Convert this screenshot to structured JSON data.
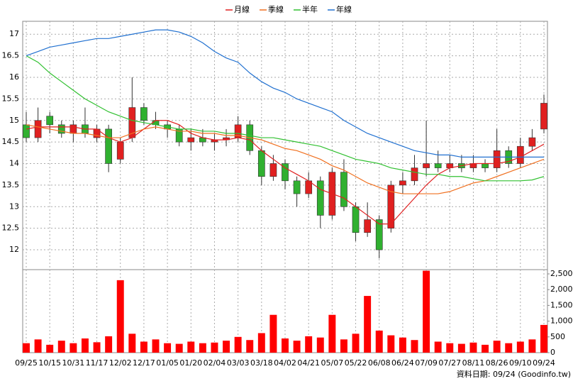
{
  "chart_data": {
    "type": "candlestick",
    "legend": [
      "月線",
      "季線",
      "半年",
      "年線"
    ],
    "source_note": "資料日期: 09/24 (Goodinfo.tw)",
    "categories": [
      "09/25",
      null,
      "10/15",
      null,
      "10/31",
      null,
      "11/17",
      null,
      "12/02",
      null,
      "12/17",
      null,
      "01/05",
      null,
      "01/20",
      null,
      "02/04",
      null,
      "03/03",
      null,
      "03/18",
      null,
      "04/02",
      null,
      "04/21",
      null,
      "05/07",
      null,
      "05/22",
      null,
      "06/08",
      null,
      "06/24",
      null,
      "07/09",
      null,
      "07/27",
      null,
      "08/11",
      null,
      "08/26",
      null,
      "09/10",
      null,
      "09/24"
    ],
    "open": [
      14.9,
      14.6,
      15.1,
      14.9,
      14.7,
      14.9,
      14.6,
      14.8,
      14.1,
      14.6,
      15.3,
      15.0,
      14.9,
      14.8,
      14.5,
      14.6,
      14.5,
      14.55,
      14.6,
      14.9,
      14.3,
      13.7,
      14.0,
      13.6,
      13.3,
      13.6,
      12.8,
      13.8,
      13.0,
      12.4,
      12.7,
      12.5,
      13.5,
      13.6,
      13.9,
      14.0,
      13.9,
      14.0,
      13.9,
      14.0,
      13.9,
      14.3,
      14.0,
      14.4,
      14.8
    ],
    "high": [
      15.2,
      15.3,
      15.2,
      15.0,
      15.0,
      15.3,
      14.9,
      14.9,
      14.6,
      16.0,
      15.4,
      15.2,
      15.0,
      14.9,
      14.8,
      14.8,
      14.7,
      14.8,
      15.1,
      15.0,
      14.4,
      14.2,
      14.1,
      13.7,
      13.8,
      13.7,
      13.9,
      14.1,
      13.1,
      13.1,
      12.8,
      13.6,
      13.8,
      14.2,
      15.0,
      14.3,
      14.2,
      14.2,
      14.2,
      14.1,
      14.8,
      14.4,
      14.6,
      14.8,
      15.6
    ],
    "low": [
      14.5,
      14.5,
      14.7,
      14.6,
      14.5,
      14.6,
      14.5,
      13.8,
      14.0,
      14.5,
      14.9,
      14.8,
      14.6,
      14.4,
      14.3,
      14.4,
      14.3,
      14.4,
      14.5,
      14.2,
      13.5,
      13.6,
      13.4,
      13.0,
      13.2,
      12.5,
      12.7,
      12.9,
      12.2,
      12.3,
      11.8,
      12.4,
      13.3,
      13.5,
      13.7,
      13.8,
      13.8,
      13.8,
      13.8,
      13.8,
      13.8,
      13.9,
      13.9,
      14.3,
      14.7
    ],
    "close": [
      14.6,
      15.0,
      14.9,
      14.7,
      14.9,
      14.7,
      14.8,
      14.0,
      14.5,
      15.3,
      15.0,
      14.9,
      14.8,
      14.5,
      14.6,
      14.5,
      14.55,
      14.6,
      14.9,
      14.3,
      13.7,
      14.0,
      13.6,
      13.3,
      13.6,
      12.8,
      13.8,
      13.0,
      12.4,
      12.7,
      12.0,
      13.5,
      13.6,
      13.9,
      14.0,
      13.9,
      14.0,
      13.9,
      14.0,
      13.9,
      14.3,
      14.0,
      14.4,
      14.6,
      15.4
    ],
    "ylim": [
      11.54,
      17.3
    ],
    "yticks": [
      12,
      12.5,
      13,
      13.5,
      14,
      14.5,
      15,
      15.5,
      16,
      16.5,
      17
    ],
    "series": [
      {
        "name": "月線",
        "color": "#e02020",
        "values": [
          14.8,
          14.85,
          14.85,
          14.85,
          14.85,
          14.8,
          14.8,
          14.6,
          14.5,
          14.6,
          14.8,
          15.0,
          15.0,
          14.9,
          14.7,
          14.6,
          14.55,
          14.55,
          14.6,
          14.55,
          14.3,
          14.1,
          13.9,
          13.75,
          13.6,
          13.4,
          13.3,
          13.2,
          13.0,
          12.8,
          12.6,
          12.6,
          12.9,
          13.2,
          13.5,
          13.75,
          13.9,
          13.95,
          14.0,
          14.0,
          14.0,
          14.05,
          14.15,
          14.3,
          14.45
        ]
      },
      {
        "name": "季線",
        "color": "#f07020",
        "values": [
          14.9,
          14.85,
          14.8,
          14.75,
          14.7,
          14.7,
          14.65,
          14.6,
          14.6,
          14.7,
          14.8,
          14.85,
          14.8,
          14.75,
          14.75,
          14.7,
          14.7,
          14.65,
          14.65,
          14.6,
          14.55,
          14.45,
          14.35,
          14.3,
          14.2,
          14.1,
          13.95,
          13.85,
          13.7,
          13.55,
          13.45,
          13.35,
          13.3,
          13.3,
          13.3,
          13.3,
          13.35,
          13.45,
          13.55,
          13.6,
          13.7,
          13.8,
          13.9,
          14.0,
          14.1
        ]
      },
      {
        "name": "半年",
        "color": "#30c030",
        "values": [
          16.5,
          16.35,
          16.1,
          15.9,
          15.7,
          15.5,
          15.35,
          15.2,
          15.1,
          15.0,
          14.95,
          14.9,
          14.85,
          14.8,
          14.8,
          14.75,
          14.75,
          14.7,
          14.7,
          14.65,
          14.6,
          14.6,
          14.55,
          14.5,
          14.45,
          14.4,
          14.3,
          14.2,
          14.1,
          14.05,
          14.0,
          13.9,
          13.85,
          13.8,
          13.75,
          13.75,
          13.7,
          13.7,
          13.65,
          13.6,
          13.6,
          13.6,
          13.6,
          13.62,
          13.7
        ]
      },
      {
        "name": "年線",
        "color": "#2070d0",
        "values": [
          16.5,
          16.6,
          16.7,
          16.75,
          16.8,
          16.85,
          16.9,
          16.9,
          16.95,
          17.0,
          17.05,
          17.1,
          17.1,
          17.05,
          16.95,
          16.8,
          16.6,
          16.45,
          16.35,
          16.1,
          15.9,
          15.75,
          15.65,
          15.5,
          15.4,
          15.3,
          15.2,
          15.0,
          14.85,
          14.7,
          14.6,
          14.5,
          14.4,
          14.3,
          14.25,
          14.2,
          14.2,
          14.15,
          14.15,
          14.15,
          14.15,
          14.15,
          14.15,
          14.15,
          14.15
        ]
      }
    ],
    "volume": {
      "color": "#ff0000",
      "values": [
        300,
        420,
        250,
        380,
        300,
        450,
        330,
        520,
        2300,
        600,
        350,
        420,
        300,
        280,
        350,
        300,
        320,
        380,
        500,
        400,
        620,
        1200,
        450,
        380,
        520,
        480,
        1200,
        420,
        600,
        1800,
        700,
        550,
        480,
        400,
        2600,
        350,
        300,
        280,
        320,
        250,
        380,
        300,
        350,
        420,
        880
      ]
    },
    "y2lim": [
      0,
      2635
    ],
    "y2ticks": [
      0,
      500,
      {
        "value": 1000,
        "label": "1,000"
      },
      {
        "value": 1500,
        "label": "1,500"
      },
      {
        "value": 2000,
        "label": "2,000"
      },
      {
        "value": 2500,
        "label": "2,500"
      }
    ],
    "up_color": "#e02020",
    "down_color": "#30b030",
    "grid": true
  }
}
